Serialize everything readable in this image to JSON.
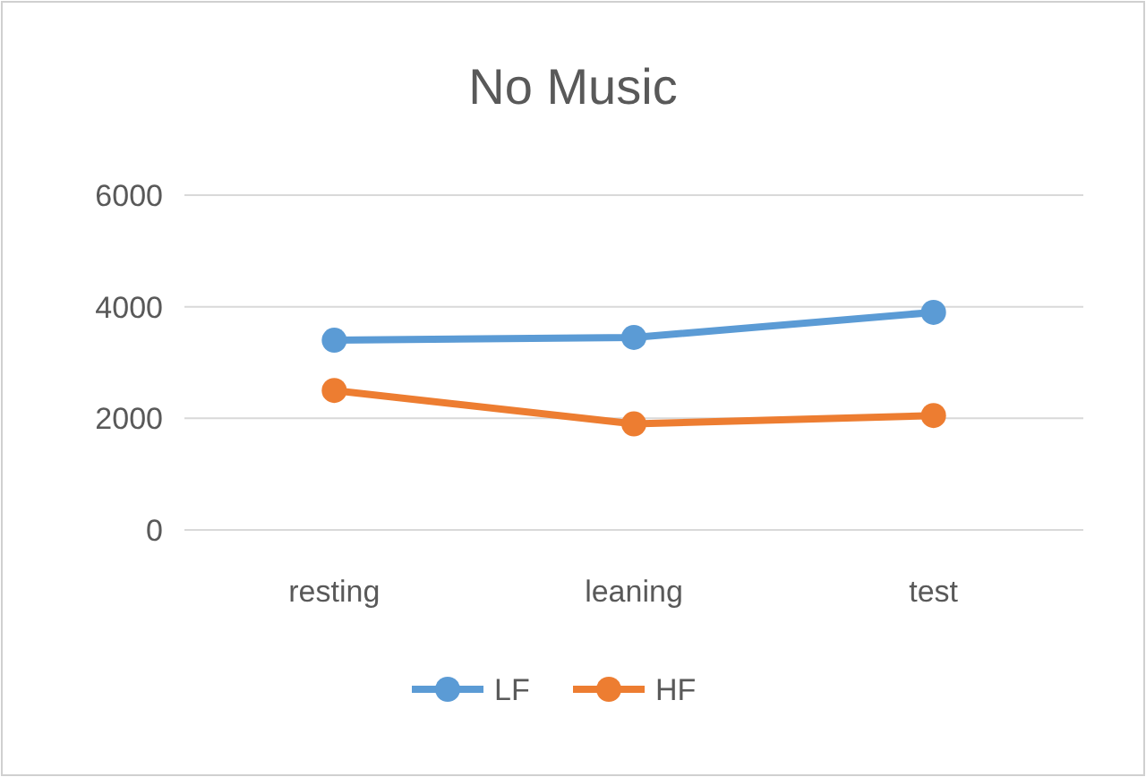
{
  "chart_data": {
    "type": "line",
    "title": "No Music",
    "categories": [
      "resting",
      "leaning",
      "test"
    ],
    "series": [
      {
        "name": "LF",
        "color": "#5b9bd5",
        "values": [
          3400,
          3450,
          3900
        ]
      },
      {
        "name": "HF",
        "color": "#ed7d31",
        "values": [
          2500,
          1900,
          2050
        ]
      }
    ],
    "ylim": [
      0,
      6000
    ],
    "yticks": [
      0,
      2000,
      4000,
      6000
    ],
    "grid": "y",
    "legend": "bottom",
    "marker": "circle",
    "line_style": "solid"
  }
}
